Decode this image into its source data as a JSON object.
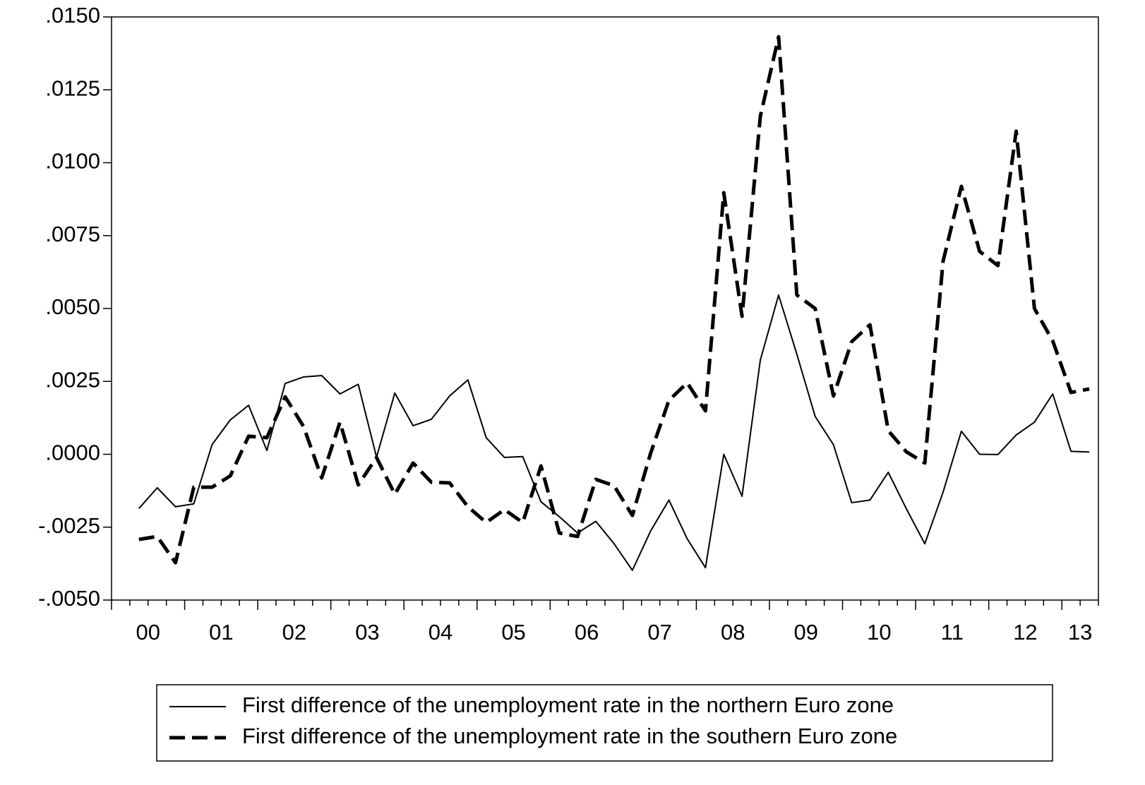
{
  "chart_data": {
    "type": "line",
    "x": [
      2000.375,
      2000.625,
      2000.875,
      2001.125,
      2001.375,
      2001.625,
      2001.875,
      2002.125,
      2002.375,
      2002.625,
      2002.875,
      2003.125,
      2003.375,
      2003.625,
      2003.875,
      2004.125,
      2004.375,
      2004.625,
      2004.875,
      2005.125,
      2005.375,
      2005.625,
      2005.875,
      2006.125,
      2006.375,
      2006.625,
      2006.875,
      2007.125,
      2007.375,
      2007.625,
      2007.875,
      2008.125,
      2008.375,
      2008.625,
      2008.875,
      2009.125,
      2009.375,
      2009.625,
      2009.875,
      2010.125,
      2010.375,
      2010.625,
      2010.875,
      2011.125,
      2011.375,
      2011.625,
      2011.875,
      2012.125,
      2012.375,
      2012.625,
      2012.875,
      2013.125,
      2013.375
    ],
    "series": [
      {
        "name": "First difference of the unemployment rate in the northern Euro zone",
        "color": "#000000",
        "dash": false,
        "values": [
          -0.00186,
          -0.00115,
          -0.0018,
          -0.0017,
          0.00033,
          0.00118,
          0.00168,
          0.00013,
          0.00243,
          0.00265,
          0.0027,
          0.00207,
          0.0024,
          -0.0001,
          0.0021,
          0.00098,
          0.0012,
          0.002,
          0.00255,
          0.00057,
          -0.00011,
          -8e-05,
          -0.00163,
          -0.00214,
          -0.0027,
          -0.0023,
          -0.00307,
          -0.00398,
          -0.00263,
          -0.00157,
          -0.0029,
          -0.00389,
          0.0,
          -0.00144,
          0.00323,
          0.00546,
          0.00343,
          0.0013,
          0.00033,
          -0.00166,
          -0.00157,
          -0.00062,
          -0.00188,
          -0.00307,
          -0.0013,
          0.00079,
          0.0,
          -1e-05,
          0.00066,
          0.0011,
          0.00207,
          0.0001,
          8e-05
        ]
      },
      {
        "name": "First difference of the unemployment rate in the southern Euro zone",
        "color": "#000000",
        "dash": true,
        "values": [
          -0.00292,
          -0.00282,
          -0.00372,
          -0.00113,
          -0.00113,
          -0.00074,
          0.00062,
          0.00057,
          0.00197,
          0.00096,
          -0.00081,
          0.0011,
          -0.00105,
          -0.00011,
          -0.00137,
          -0.0003,
          -0.00096,
          -0.00098,
          -0.0018,
          -0.00234,
          -0.0019,
          -0.00234,
          -0.0004,
          -0.0027,
          -0.00282,
          -0.00086,
          -0.00108,
          -0.0021,
          4e-05,
          0.00185,
          0.00245,
          0.00149,
          0.00897,
          0.00473,
          0.01159,
          0.01432,
          0.00546,
          0.005,
          0.002,
          0.00386,
          0.00444,
          0.00081,
          8e-05,
          -0.0003,
          0.00662,
          0.00919,
          0.00696,
          0.00647,
          0.01108,
          0.005,
          0.00389,
          0.00212,
          0.00224
        ]
      }
    ],
    "xlim": [
      2000,
      2013.5
    ],
    "xticks": [
      {
        "value": 2000.5,
        "label": "00"
      },
      {
        "value": 2001.5,
        "label": "01"
      },
      {
        "value": 2002.5,
        "label": "02"
      },
      {
        "value": 2003.5,
        "label": "03"
      },
      {
        "value": 2004.5,
        "label": "04"
      },
      {
        "value": 2005.5,
        "label": "05"
      },
      {
        "value": 2006.5,
        "label": "06"
      },
      {
        "value": 2007.5,
        "label": "07"
      },
      {
        "value": 2008.5,
        "label": "08"
      },
      {
        "value": 2009.5,
        "label": "09"
      },
      {
        "value": 2010.5,
        "label": "10"
      },
      {
        "value": 2011.5,
        "label": "11"
      },
      {
        "value": 2012.5,
        "label": "12"
      },
      {
        "value": 2013.25,
        "label": "13"
      }
    ],
    "ylim": [
      -0.005,
      0.015
    ],
    "yticks": [
      {
        "value": -0.005,
        "label": "-.0050"
      },
      {
        "value": -0.0025,
        "label": "-.0025"
      },
      {
        "value": 0,
        "label": ".0000"
      },
      {
        "value": 0.0025,
        "label": ".0025"
      },
      {
        "value": 0.005,
        "label": ".0050"
      },
      {
        "value": 0.0075,
        "label": ".0075"
      },
      {
        "value": 0.01,
        "label": ".0100"
      },
      {
        "value": 0.0125,
        "label": ".0125"
      },
      {
        "value": 0.015,
        "label": ".0150"
      }
    ],
    "grid": false
  }
}
